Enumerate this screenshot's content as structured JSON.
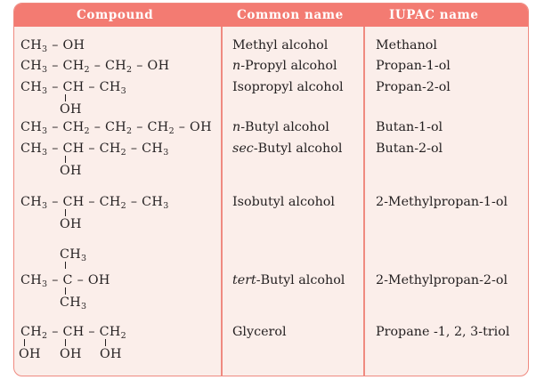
{
  "header": {
    "col1": "Compound",
    "col2": "Common name",
    "col3": "IUPAC name"
  },
  "rows": [
    {
      "formula": [
        "CH₃ – OH"
      ],
      "common": {
        "prefix": "",
        "italic": "",
        "rest": "Methyl  alcohol"
      },
      "iupac": "Methanol"
    },
    {
      "formula": [
        "CH₃ – CH₂ – CH₂ – OH"
      ],
      "common": {
        "prefix": "",
        "italic": "n",
        "rest": "-Propyl  alcohol"
      },
      "iupac": "Propan-1-ol"
    },
    {
      "formula": [
        "CH₃ – CH – CH₃",
        "OH"
      ],
      "common": {
        "prefix": "",
        "italic": "",
        "rest": "Isopropyl  alcohol"
      },
      "iupac": "Propan-2-ol"
    },
    {
      "formula": [
        "CH₃ – CH₂ – CH₂ – CH₂ – OH"
      ],
      "common": {
        "prefix": "",
        "italic": "n",
        "rest": "-Butyl  alcohol"
      },
      "iupac": "Butan-1-ol"
    },
    {
      "formula": [
        "CH₃ – CH – CH₂ – CH₃",
        "OH"
      ],
      "common": {
        "prefix": "",
        "italic": "sec",
        "rest": "-Butyl  alcohol"
      },
      "iupac": "Butan-2-ol"
    },
    {
      "formula": [
        "CH₃ – CH – CH₂ – CH₃",
        "OH"
      ],
      "common": {
        "prefix": "",
        "italic": "",
        "rest": "Isobutyl  alcohol"
      },
      "iupac": "2-Methylpropan-1-ol"
    },
    {
      "formula": [
        "CH₃",
        "CH₃ – C – OH",
        "CH₃"
      ],
      "common": {
        "prefix": "",
        "italic": "tert",
        "rest": "-Butyl  alcohol"
      },
      "iupac": "2-Methylpropan-2-ol"
    },
    {
      "formula": [
        "CH₂ – CH – CH₂",
        "OH",
        "OH",
        "OH"
      ],
      "common": {
        "prefix": "",
        "italic": "",
        "rest": "Glycerol"
      },
      "iupac": "Propane -1, 2, 3-triol"
    }
  ]
}
